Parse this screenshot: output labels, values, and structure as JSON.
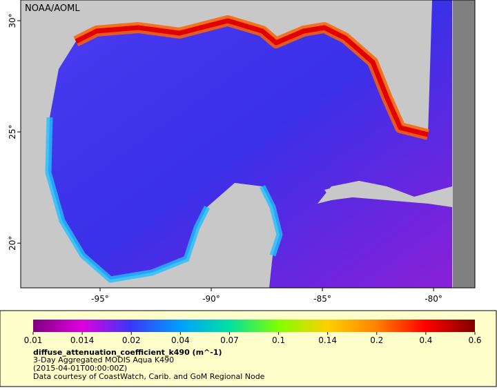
{
  "map": {
    "type": "map",
    "credit": "NOAA/AOML",
    "xlim": [
      -98.57,
      -78.14
    ],
    "ylim": [
      17.99,
      30.93
    ],
    "xticks": [
      {
        "value": -95,
        "label": "-95°"
      },
      {
        "value": -90,
        "label": "-90°"
      },
      {
        "value": -85,
        "label": "-85°"
      },
      {
        "value": -80,
        "label": "-80°"
      }
    ],
    "yticks": [
      {
        "value": 20,
        "label": "20°"
      },
      {
        "value": 25,
        "label": "25°"
      },
      {
        "value": 30,
        "label": "30°"
      }
    ]
  },
  "colorbar": {
    "ticks": [
      0.01,
      0.014,
      0.02,
      0.04,
      0.07,
      0.1,
      0.14,
      0.2,
      0.4,
      0.6
    ],
    "colors": [
      "#800080",
      "#e000e0",
      "#3838f8",
      "#00a0ff",
      "#00e0a0",
      "#80ff00",
      "#ffd000",
      "#ff8000",
      "#ff0000",
      "#800000"
    ]
  },
  "legend": {
    "variable": "diffuse_attenuation_coefficient_k490 (m^-1)",
    "description": "3-Day Aggregated MODIS Aqua K490",
    "time": "(2015-04-01T00:00:00Z)",
    "source": "Data courtesy of CoastWatch, Carib. and GoM Regional Node"
  }
}
